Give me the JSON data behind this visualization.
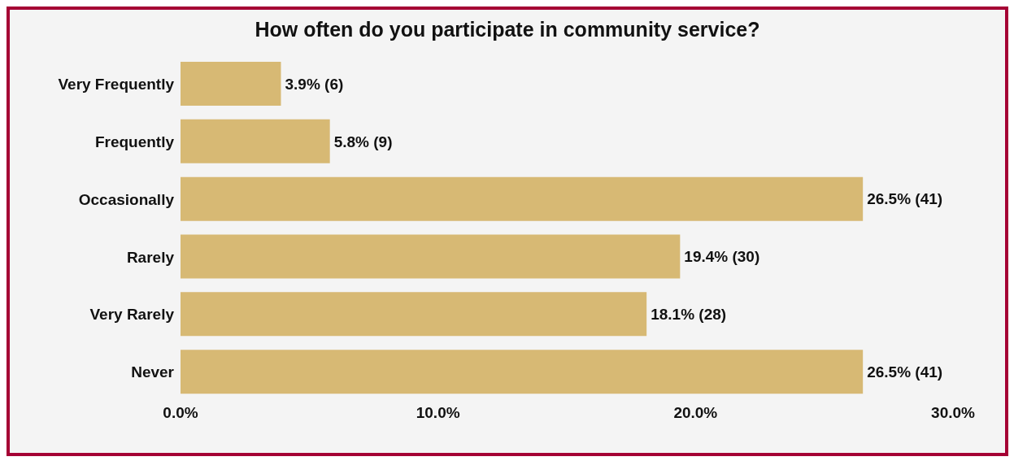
{
  "chart_data": {
    "type": "bar",
    "orientation": "horizontal",
    "title": "How often do you participate in community service?",
    "categories": [
      "Very Frequently",
      "Frequently",
      "Occasionally",
      "Rarely",
      "Very Rarely",
      "Never"
    ],
    "values": [
      3.9,
      5.8,
      26.5,
      19.4,
      18.1,
      26.5
    ],
    "value_labels": [
      "3.9% (6)",
      "5.8% (9)",
      "26.5% (41)",
      "19.4% (30)",
      "18.1% (28)",
      "26.5% (41)"
    ],
    "color": "#d7b974",
    "xlim": [
      0,
      30
    ],
    "xticks": [
      {
        "value": 0,
        "label": "0.0%"
      },
      {
        "value": 10,
        "label": "10.0%"
      },
      {
        "value": 20,
        "label": "20.0%"
      },
      {
        "value": 30,
        "label": "30.0%"
      }
    ],
    "grid": false,
    "legend": false
  }
}
